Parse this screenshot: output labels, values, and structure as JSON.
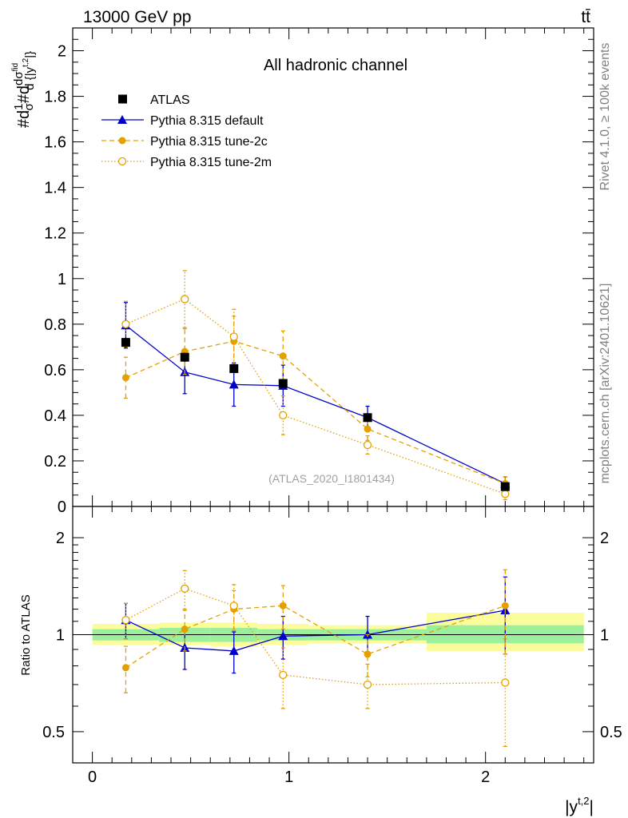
{
  "header": {
    "energy_label": "13000 GeV pp",
    "process_label": "tt̄",
    "side_label_top": "Rivet 4.1.0, ≥ 100k events",
    "side_label_bottom": "mcplots.cern.ch [arXiv:2401.10621]"
  },
  "chart_data": [
    {
      "type": "scatter",
      "panel": "main",
      "title": "All hadronic channel",
      "watermark": "(ATLAS_2020_I1801434)",
      "ylabel_parts": [
        "#d",
        "1",
        "σ",
        "#d",
        "dσ",
        "fid",
        "d {|y",
        "t,2",
        "|}"
      ],
      "xlim": [
        -0.1,
        2.55
      ],
      "ylim": [
        0,
        2.1
      ],
      "yticks": [
        0,
        0.2,
        0.4,
        0.6,
        0.8,
        1,
        1.2,
        1.4,
        1.6,
        1.8,
        2
      ],
      "ytick_labels": [
        "0",
        "0.2",
        "0.4",
        "0.6",
        "0.8",
        "1",
        "1.2",
        "1.4",
        "1.6",
        "1.8",
        "2"
      ],
      "legend_position": "top-left",
      "data": {
        "name": "ATLAS",
        "color": "#000000",
        "bins": [
          [
            0.0,
            0.34
          ],
          [
            0.34,
            0.6
          ],
          [
            0.6,
            0.84
          ],
          [
            0.84,
            1.1
          ],
          [
            1.1,
            1.7
          ],
          [
            1.7,
            2.5
          ]
        ],
        "x": [
          0.17,
          0.47,
          0.72,
          0.97,
          1.4,
          2.1
        ],
        "y": [
          0.72,
          0.655,
          0.605,
          0.54,
          0.39,
          0.087
        ],
        "err": [
          0.025,
          0.02,
          0.02,
          0.02,
          0.015,
          0.01
        ]
      },
      "series": [
        {
          "name": "Pythia 8.315 default",
          "color": "#0000cc",
          "line": "solid",
          "marker": "triangle",
          "x": [
            0.17,
            0.47,
            0.72,
            0.97,
            1.4,
            2.1
          ],
          "y": [
            0.795,
            0.59,
            0.535,
            0.53,
            0.39,
            0.1
          ],
          "err": [
            0.1,
            0.095,
            0.095,
            0.09,
            0.05,
            0.03
          ]
        },
        {
          "name": "Pythia 8.315 tune-2c",
          "color": "#e5a000",
          "line": "dashed",
          "marker": "filled-circle",
          "x": [
            0.17,
            0.47,
            0.72,
            0.97,
            1.4,
            2.1
          ],
          "y": [
            0.565,
            0.68,
            0.725,
            0.66,
            0.34,
            0.1
          ],
          "err": [
            0.09,
            0.1,
            0.11,
            0.11,
            0.05,
            0.03
          ]
        },
        {
          "name": "Pythia 8.315 tune-2m",
          "color": "#e5a000",
          "line": "dotted",
          "marker": "open-circle",
          "x": [
            0.17,
            0.47,
            0.72,
            0.97,
            1.4,
            2.1
          ],
          "y": [
            0.8,
            0.91,
            0.745,
            0.4,
            0.27,
            0.055
          ],
          "err": [
            0.1,
            0.125,
            0.12,
            0.085,
            0.04,
            0.025
          ]
        }
      ]
    },
    {
      "type": "scatter",
      "panel": "ratio",
      "ylabel": "Ratio to ATLAS",
      "xlabel_parts": [
        "|y",
        "t,2",
        "|"
      ],
      "yscale": "log",
      "ylim": [
        0.4,
        2.5
      ],
      "yticks": [
        0.5,
        1,
        2
      ],
      "ytick_labels": [
        "0.5",
        "1",
        "2"
      ],
      "xticks": [
        0,
        1,
        2
      ],
      "xtick_labels": [
        "0",
        "1",
        "2"
      ],
      "bands": {
        "bins": [
          [
            0.0,
            0.34
          ],
          [
            0.34,
            0.6
          ],
          [
            0.6,
            0.84
          ],
          [
            0.84,
            1.1
          ],
          [
            1.1,
            1.7
          ],
          [
            1.7,
            2.5
          ]
        ],
        "inner": [
          [
            0.96,
            1.04
          ],
          [
            0.95,
            1.05
          ],
          [
            0.95,
            1.05
          ],
          [
            0.96,
            1.04
          ],
          [
            0.96,
            1.04
          ],
          [
            0.94,
            1.07
          ]
        ],
        "outer": [
          [
            0.93,
            1.08
          ],
          [
            0.93,
            1.09
          ],
          [
            0.92,
            1.09
          ],
          [
            0.93,
            1.08
          ],
          [
            0.94,
            1.07
          ],
          [
            0.89,
            1.17
          ]
        ],
        "inner_color": "#9cf09c",
        "outer_color": "#fbfc9b"
      },
      "series": [
        {
          "name": "Pythia 8.315 default",
          "color": "#0000cc",
          "line": "solid",
          "marker": "triangle",
          "x": [
            0.17,
            0.47,
            0.72,
            0.97,
            1.4,
            2.1
          ],
          "y": [
            1.11,
            0.91,
            0.89,
            0.99,
            1.0,
            1.19
          ],
          "err": [
            0.14,
            0.13,
            0.13,
            0.15,
            0.14,
            0.32
          ]
        },
        {
          "name": "Pythia 8.315 tune-2c",
          "color": "#e5a000",
          "line": "dashed",
          "marker": "filled-circle",
          "x": [
            0.17,
            0.47,
            0.72,
            0.97,
            1.4,
            2.1
          ],
          "y": [
            0.79,
            1.04,
            1.2,
            1.23,
            0.87,
            1.23
          ],
          "err": [
            0.13,
            0.15,
            0.17,
            0.19,
            0.13,
            0.36
          ]
        },
        {
          "name": "Pythia 8.315 tune-2m",
          "color": "#e5a000",
          "line": "dotted",
          "marker": "open-circle",
          "x": [
            0.17,
            0.47,
            0.72,
            0.97,
            1.4,
            2.1
          ],
          "y": [
            1.11,
            1.39,
            1.23,
            0.75,
            0.7,
            0.71
          ],
          "err": [
            0.14,
            0.19,
            0.2,
            0.16,
            0.11,
            0.26
          ]
        }
      ]
    }
  ]
}
